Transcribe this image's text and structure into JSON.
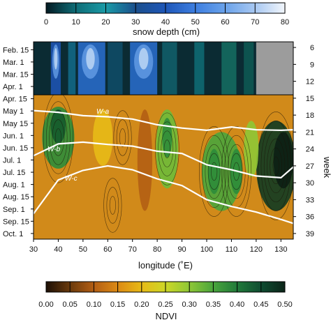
{
  "chart_data": {
    "type": "heatmap",
    "snow_colorbar": {
      "label": "snow depth (cm)",
      "range": [
        0,
        80
      ],
      "ticks": [
        "0",
        "10",
        "20",
        "30",
        "40",
        "50",
        "60",
        "70",
        "80"
      ],
      "colors": [
        "#031a22",
        "#0f6d77",
        "#1a9aa6",
        "#1b4f8c",
        "#1e56b8",
        "#3d7ee0",
        "#6aa2ea",
        "#a8c8f2",
        "#f2f6fb"
      ]
    },
    "ndvi_colorbar": {
      "label": "NDVI",
      "range": [
        0,
        0.5
      ],
      "ticks": [
        "0.00",
        "0.05",
        "0.10",
        "0.15",
        "0.20",
        "0.25",
        "0.30",
        "0.35",
        "0.40",
        "0.45",
        "0.50"
      ],
      "colors": [
        "#1c0f06",
        "#6a3a0c",
        "#b35e14",
        "#dc8a14",
        "#e7ba17",
        "#cdd726",
        "#8ec736",
        "#4aa53c",
        "#207a3a",
        "#0f4c31",
        "#0c2418"
      ]
    },
    "x_axis": {
      "label": "longitude (˚E)",
      "range": [
        30,
        135
      ],
      "ticks": [
        "30",
        "40",
        "50",
        "60",
        "70",
        "80",
        "90",
        "100",
        "110",
        "120",
        "130"
      ]
    },
    "date_axis_left": [
      "Feb. 15",
      "Mar. 1",
      "Mar. 15",
      "Apr. 1",
      "Apr. 15",
      "May 1",
      "May 15",
      "Jun. 1",
      "Jun. 15",
      "Jul. 1",
      "Jul. 15",
      "Aug. 1",
      "Aug. 15",
      "Sep. 1",
      "Sep. 15",
      "Oct. 1"
    ],
    "week_axis_right": {
      "label": "week",
      "range": [
        5,
        40
      ],
      "ticks": [
        "6",
        "9",
        "12",
        "15",
        "18",
        "21",
        "24",
        "27",
        "30",
        "33",
        "36",
        "39"
      ]
    },
    "snow_panel": {
      "weeks": [
        5,
        14.5
      ],
      "no_data_region": {
        "lon": [
          120,
          135
        ],
        "color": "#9c9c9c"
      },
      "high_snow_bands_lon": [
        [
          37,
          41
        ],
        [
          48,
          58
        ],
        [
          69,
          80
        ]
      ]
    },
    "ndvi_panel": {
      "weeks": [
        14.5,
        40
      ],
      "line_labels": [
        "W-a",
        "W-b",
        "W-c"
      ],
      "lines": [
        {
          "label": "W-a",
          "lon": [
            30,
            40,
            50,
            60,
            70,
            80,
            90,
            100,
            110,
            120,
            130,
            135
          ],
          "week": [
            17.2,
            17.5,
            18.1,
            18.3,
            18.7,
            19.7,
            20.3,
            20.7,
            20.1,
            20.6,
            20.7,
            20.6
          ]
        },
        {
          "label": "W-b",
          "lon": [
            30,
            40,
            50,
            60,
            70,
            80,
            90,
            100,
            110,
            120,
            130,
            135
          ],
          "week": [
            25.2,
            23.1,
            22.8,
            23.2,
            23.5,
            24.4,
            24.8,
            26.8,
            27.7,
            28.8,
            29.1,
            27.2
          ]
        },
        {
          "label": "W-c",
          "lon": [
            30,
            40,
            50,
            60,
            70,
            80,
            90,
            100,
            110,
            120,
            130,
            135
          ],
          "week": [
            35.5,
            29.5,
            27.8,
            27.0,
            27.7,
            29.3,
            30.5,
            33.0,
            34.2,
            35.2,
            36.5,
            37.2
          ]
        }
      ]
    }
  }
}
